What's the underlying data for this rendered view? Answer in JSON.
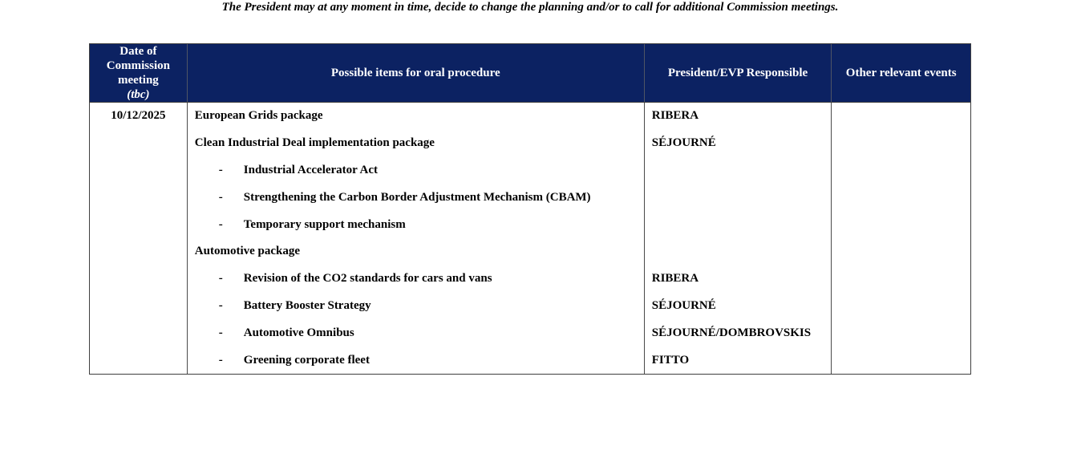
{
  "page": {
    "disclaimer": "The President may at any moment in time, decide to change the planning and/or to call for additional Commission meetings."
  },
  "colors": {
    "header_bg": "#0c2262",
    "header_text": "#ffffff",
    "border": "#3f3f3f",
    "body_text": "#000000"
  },
  "table": {
    "headers": [
      {
        "label": "Date of Commission meeting",
        "sub_label": "(tbc)"
      },
      {
        "label": "Possible items for oral procedure"
      },
      {
        "label": "President/EVP Responsible"
      },
      {
        "label": "Other relevant events"
      }
    ],
    "meeting_date": "10/12/2025",
    "rows": [
      {
        "item": "European Grids package",
        "indent": 0,
        "responsible": "RIBERA"
      },
      {
        "item": "Clean Industrial Deal implementation package",
        "indent": 0,
        "responsible": "SÉJOURNÉ"
      },
      {
        "item": "Industrial Accelerator Act",
        "indent": 1,
        "responsible": ""
      },
      {
        "item": "Strengthening the Carbon Border Adjustment Mechanism (CBAM)",
        "indent": 1,
        "responsible": ""
      },
      {
        "item": "Temporary support mechanism",
        "indent": 1,
        "responsible": ""
      },
      {
        "item": "Automotive package",
        "indent": 0,
        "responsible": ""
      },
      {
        "item": "Revision of the CO2 standards for cars and vans",
        "indent": 1,
        "responsible": "RIBERA"
      },
      {
        "item": "Battery Booster Strategy",
        "indent": 1,
        "responsible": "SÉJOURNÉ"
      },
      {
        "item": "Automotive Omnibus",
        "indent": 1,
        "responsible": "SÉJOURNÉ/DOMBROVSKIS"
      },
      {
        "item": "Greening corporate fleet",
        "indent": 1,
        "responsible": "FITTO"
      }
    ],
    "other_relevant_events": ""
  }
}
